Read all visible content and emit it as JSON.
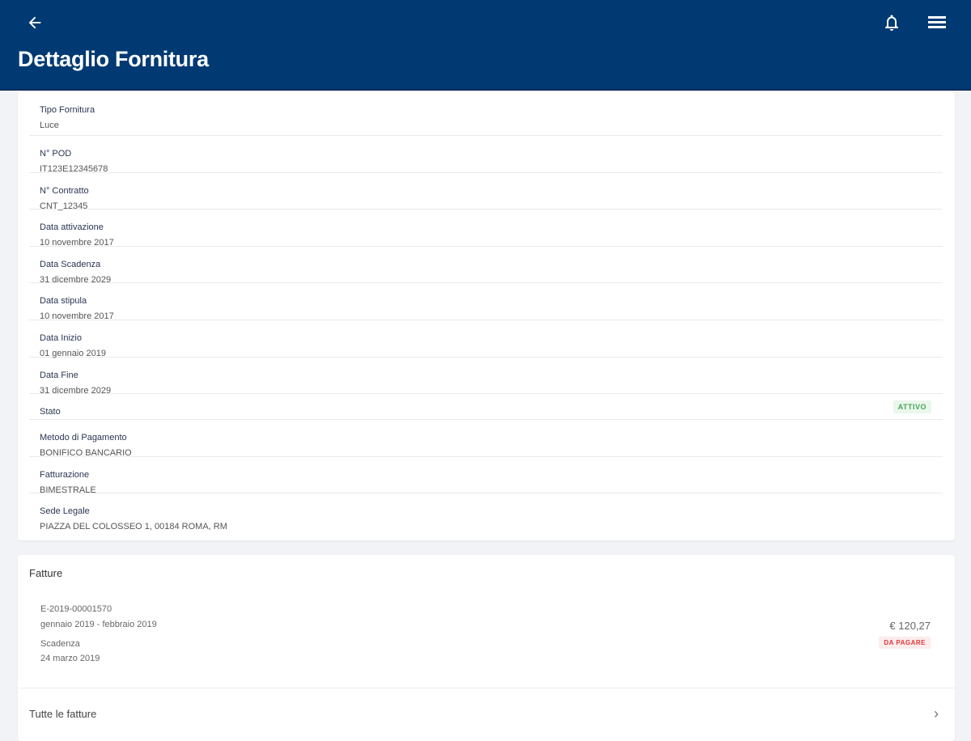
{
  "header": {
    "title": "Dettaglio Fornitura",
    "back_icon": "arrow-left-icon",
    "bell_icon": "bell-icon",
    "menu_icon": "hamburger-menu-icon"
  },
  "details": [
    {
      "label": "Tipo Fornitura",
      "value": "Luce"
    },
    {
      "label": "N° POD",
      "value": "IT123E12345678"
    },
    {
      "label": "N° Contratto",
      "value": "CNT_12345"
    },
    {
      "label": "Data attivazione",
      "value": "10 novembre 2017"
    },
    {
      "label": "Data Scadenza",
      "value": "31 dicembre 2029"
    },
    {
      "label": "Data stipula",
      "value": "10 novembre 2017"
    },
    {
      "label": "Data Inizio",
      "value": "01 gennaio 2019"
    },
    {
      "label": "Data Fine",
      "value": "31 dicembre 2029"
    }
  ],
  "stato": {
    "label": "Stato",
    "badge": "ATTIVO",
    "color": "#49a55a"
  },
  "details2": [
    {
      "label": "Metodo di Pagamento",
      "value": "BONIFICO BANCARIO"
    },
    {
      "label": "Fatturazione",
      "value": "BIMESTRALE"
    },
    {
      "label": "Sede Legale",
      "value": "PIAZZA DEL COLOSSEO 1, 00184 ROMA, RM"
    }
  ],
  "fatture": {
    "title": "Fatture",
    "invoice": {
      "number": "E-2019-00001570",
      "period": "gennaio 2019 - febbraio 2019",
      "due_label": "Scadenza",
      "due_date": "24 marzo 2019",
      "amount": "€ 120,27",
      "status": "DA PAGARE",
      "status_color": "#e0383b"
    },
    "all_link": "Tutte le fatture"
  }
}
